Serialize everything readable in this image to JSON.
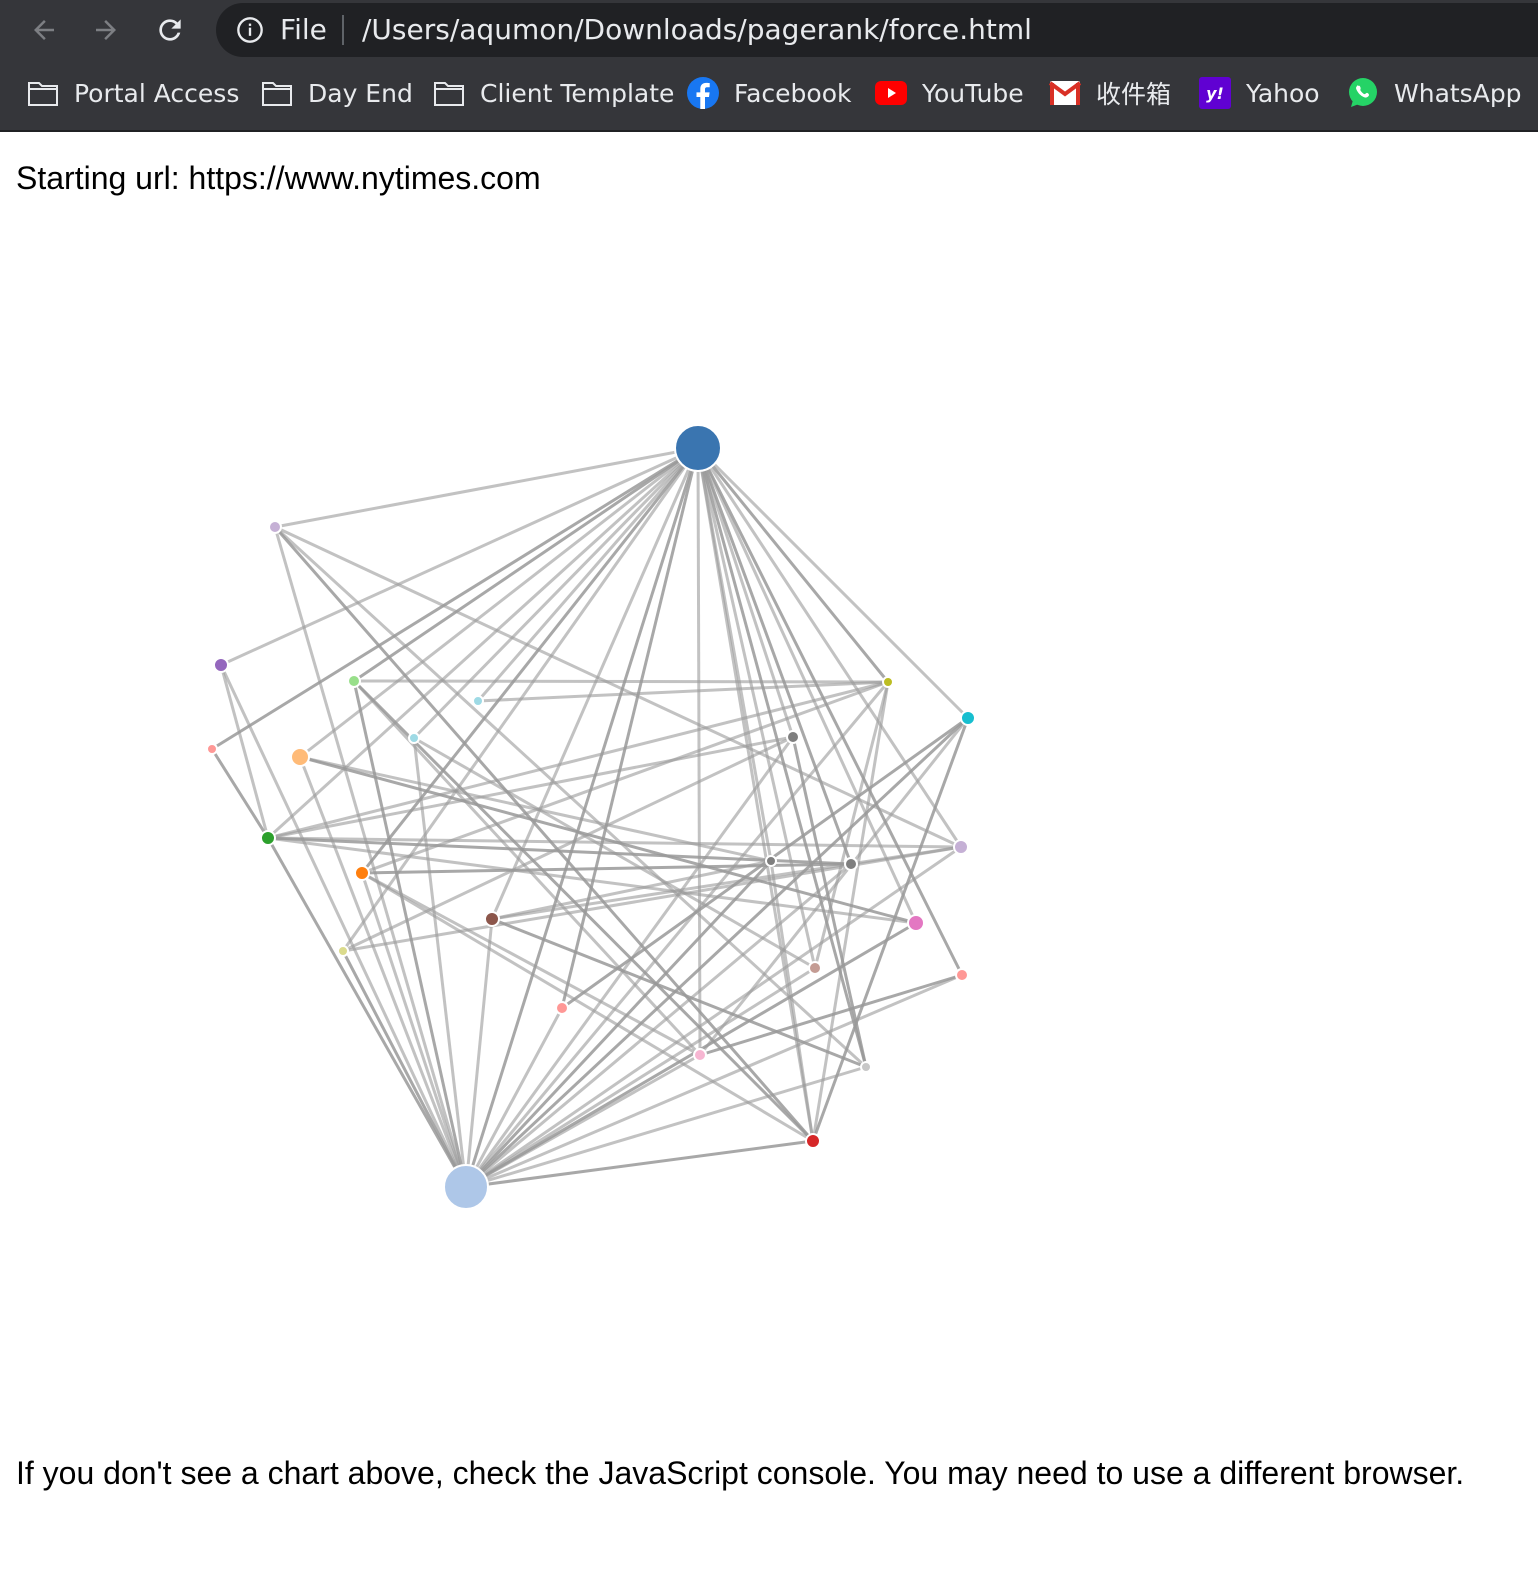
{
  "browser": {
    "address_scheme": "File",
    "address_url": "/Users/aqumon/Downloads/pagerank/force.html",
    "bookmarks": [
      {
        "label": "Portal Access",
        "icon": "folder-icon"
      },
      {
        "label": "Day End",
        "icon": "folder-icon"
      },
      {
        "label": "Client Template",
        "icon": "folder-icon"
      },
      {
        "label": "Facebook",
        "icon": "facebook-icon"
      },
      {
        "label": "YouTube",
        "icon": "youtube-icon"
      },
      {
        "label": "收件箱",
        "icon": "gmail-icon"
      },
      {
        "label": "Yahoo",
        "icon": "yahoo-icon"
      },
      {
        "label": "WhatsApp",
        "icon": "whatsapp-icon"
      }
    ]
  },
  "page": {
    "starting_url_text": "Starting url: https://www.nytimes.com",
    "footer_note": "If you don't see a chart above, check the JavaScript console. You may need to use a different browser."
  },
  "colors": {
    "toolbar_bg": "#35363a",
    "omnibox_bg": "#202124",
    "link_stroke": "#999999"
  },
  "graph": {
    "nodes": [
      {
        "id": 0,
        "color": "#3a75b0"
      },
      {
        "id": 1,
        "color": "#aec7e8"
      },
      {
        "id": 2,
        "color": "#c5b0d5"
      },
      {
        "id": 3,
        "color": "#9467bd"
      },
      {
        "id": 4,
        "color": "#98df8a"
      },
      {
        "id": 5,
        "color": "#9edae5"
      },
      {
        "id": 6,
        "color": "#9edae5"
      },
      {
        "id": 7,
        "color": "#ff9896"
      },
      {
        "id": 8,
        "color": "#ffbb78"
      },
      {
        "id": 9,
        "color": "#2ca02c"
      },
      {
        "id": 10,
        "color": "#ff7f0e"
      },
      {
        "id": 11,
        "color": "#8c564b"
      },
      {
        "id": 12,
        "color": "#dbdb8d"
      },
      {
        "id": 13,
        "color": "#ff9896"
      },
      {
        "id": 14,
        "color": "#f7b6d2"
      },
      {
        "id": 15,
        "color": "#d62728"
      },
      {
        "id": 16,
        "color": "#c7c7c7"
      },
      {
        "id": 17,
        "color": "#c49c94"
      },
      {
        "id": 18,
        "color": "#e377c2"
      },
      {
        "id": 19,
        "color": "#ff9896"
      },
      {
        "id": 20,
        "color": "#c5b0d5"
      },
      {
        "id": 21,
        "color": "#17becf"
      },
      {
        "id": 22,
        "color": "#bcbd22"
      },
      {
        "id": 23,
        "color": "#7f7f7f"
      },
      {
        "id": 24,
        "color": "#7f7f7f"
      },
      {
        "id": 25,
        "color": "#7f7f7f"
      }
    ],
    "links": [
      [
        0,
        1
      ],
      [
        0,
        2
      ],
      [
        0,
        3
      ],
      [
        0,
        4
      ],
      [
        0,
        5
      ],
      [
        0,
        6
      ],
      [
        0,
        7
      ],
      [
        0,
        8
      ],
      [
        0,
        9
      ],
      [
        0,
        10
      ],
      [
        0,
        11
      ],
      [
        0,
        12
      ],
      [
        0,
        13
      ],
      [
        0,
        14
      ],
      [
        0,
        15
      ],
      [
        0,
        16
      ],
      [
        0,
        17
      ],
      [
        0,
        18
      ],
      [
        0,
        19
      ],
      [
        0,
        20
      ],
      [
        0,
        21
      ],
      [
        0,
        22
      ],
      [
        0,
        23
      ],
      [
        0,
        24
      ],
      [
        0,
        25
      ],
      [
        1,
        2
      ],
      [
        1,
        3
      ],
      [
        1,
        4
      ],
      [
        1,
        6
      ],
      [
        1,
        8
      ],
      [
        1,
        9
      ],
      [
        1,
        10
      ],
      [
        1,
        11
      ],
      [
        1,
        12
      ],
      [
        1,
        13
      ],
      [
        1,
        14
      ],
      [
        1,
        15
      ],
      [
        1,
        16
      ],
      [
        1,
        17
      ],
      [
        1,
        18
      ],
      [
        1,
        19
      ],
      [
        1,
        20
      ],
      [
        1,
        21
      ],
      [
        1,
        22
      ],
      [
        1,
        23
      ],
      [
        1,
        24
      ],
      [
        1,
        25
      ],
      [
        2,
        20
      ],
      [
        2,
        15
      ],
      [
        2,
        16
      ],
      [
        3,
        9
      ],
      [
        7,
        9
      ],
      [
        4,
        22
      ],
      [
        5,
        22
      ],
      [
        4,
        15
      ],
      [
        6,
        17
      ],
      [
        8,
        24
      ],
      [
        8,
        18
      ],
      [
        9,
        22
      ],
      [
        9,
        23
      ],
      [
        9,
        25
      ],
      [
        9,
        20
      ],
      [
        10,
        22
      ],
      [
        10,
        25
      ],
      [
        10,
        15
      ],
      [
        11,
        20
      ],
      [
        11,
        16
      ],
      [
        12,
        20
      ],
      [
        12,
        23
      ],
      [
        13,
        21
      ],
      [
        14,
        21
      ],
      [
        14,
        10
      ],
      [
        15,
        21
      ],
      [
        15,
        24
      ],
      [
        15,
        22
      ],
      [
        16,
        23
      ],
      [
        17,
        22
      ],
      [
        18,
        9
      ],
      [
        19,
        14
      ],
      [
        11,
        24
      ],
      [
        4,
        14
      ]
    ]
  }
}
